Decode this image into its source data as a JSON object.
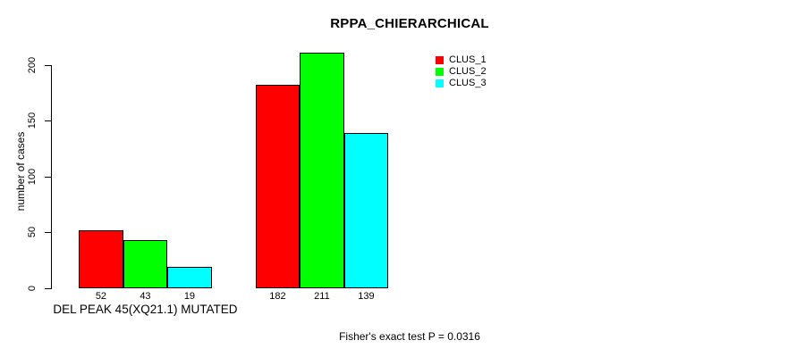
{
  "colors": {
    "background": "#ffffff",
    "axis": "#000000",
    "text": "#000000",
    "clus_1": "#ff0000",
    "clus_2": "#00ff00",
    "clus_3": "#00ffff"
  },
  "chart_data": {
    "type": "bar",
    "title": "RPPA_CHIERARCHICAL",
    "xlabel": "",
    "ylabel": "number of cases",
    "ylim": [
      0,
      215
    ],
    "yticks": [
      0,
      50,
      100,
      150,
      200
    ],
    "grid": false,
    "bar_value_labels": true,
    "legend_position": "top-right",
    "categories": [
      "DEL PEAK 45(XQ21.1) MUTATED",
      ""
    ],
    "series": [
      {
        "name": "CLUS_1",
        "color": "#ff0000",
        "values": [
          52,
          182
        ]
      },
      {
        "name": "CLUS_2",
        "color": "#00ff00",
        "values": [
          43,
          211
        ]
      },
      {
        "name": "CLUS_3",
        "color": "#00ffff",
        "values": [
          19,
          139
        ]
      }
    ],
    "annotation": "Fisher's exact test P = 0.0316"
  }
}
